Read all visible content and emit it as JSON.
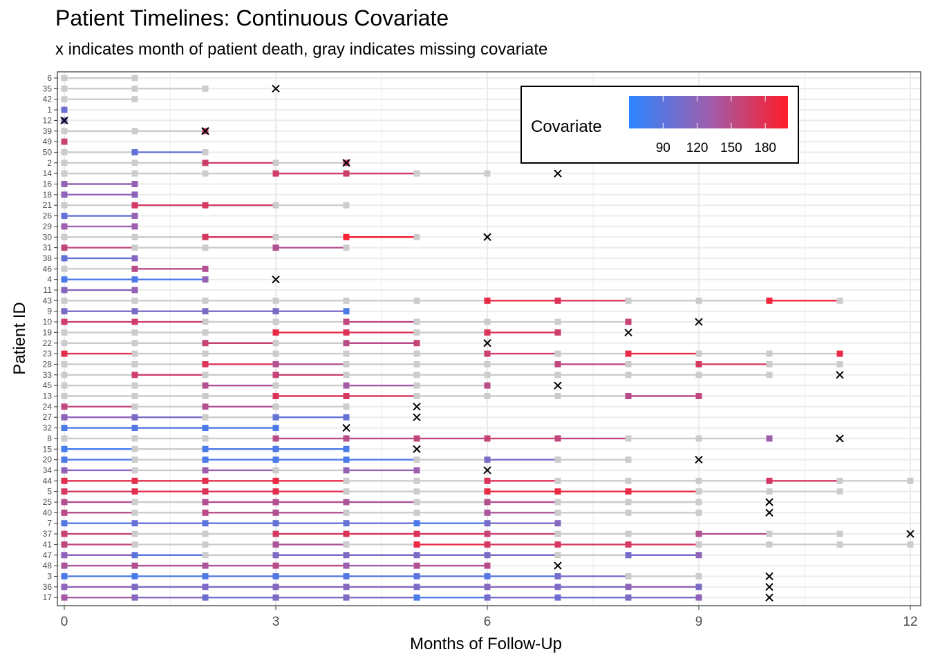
{
  "chart_data": {
    "type": "timeline",
    "title": "Patient Timelines: Continuous Covariate",
    "subtitle": "x indicates month of patient death, gray indicates missing covariate",
    "xlabel": "Months of Follow-Up",
    "ylabel": "Patient ID",
    "xlim": [
      0,
      12
    ],
    "xticks": [
      0,
      3,
      6,
      9,
      12
    ],
    "grid": true,
    "legend": {
      "title": "Covariate",
      "placement": "top-right",
      "range": [
        60,
        200
      ],
      "ticks": [
        90,
        120,
        150,
        180
      ],
      "colors": {
        "low": "#2b85ff",
        "mid": "#9d5fae",
        "high": "#ff1c28",
        "missing": "#cccccc"
      }
    },
    "patients": [
      {
        "id": "6",
        "values": [
          null,
          null
        ]
      },
      {
        "id": "35",
        "values": [
          null,
          null,
          null
        ],
        "death": 3
      },
      {
        "id": "42",
        "values": [
          null,
          null
        ]
      },
      {
        "id": "1",
        "values": [
          100
        ]
      },
      {
        "id": "12",
        "values": [
          110
        ],
        "death": 0
      },
      {
        "id": "39",
        "values": [
          null,
          null,
          160
        ],
        "death": 2
      },
      {
        "id": "49",
        "values": [
          160
        ]
      },
      {
        "id": "50",
        "values": [
          null,
          95,
          null
        ]
      },
      {
        "id": "2",
        "values": [
          null,
          null,
          165,
          null,
          160
        ],
        "death": 4
      },
      {
        "id": "14",
        "values": [
          null,
          null,
          null,
          165,
          165,
          null,
          null
        ],
        "death": 7
      },
      {
        "id": "16",
        "values": [
          125,
          125
        ]
      },
      {
        "id": "18",
        "values": [
          120,
          120
        ]
      },
      {
        "id": "21",
        "values": [
          null,
          170,
          170,
          null,
          null
        ]
      },
      {
        "id": "26",
        "values": [
          95,
          125
        ]
      },
      {
        "id": "29",
        "values": [
          130,
          130
        ]
      },
      {
        "id": "30",
        "values": [
          null,
          null,
          170,
          null,
          195,
          null
        ],
        "death": 6
      },
      {
        "id": "31",
        "values": [
          155,
          null,
          null,
          145,
          null
        ]
      },
      {
        "id": "38",
        "values": [
          95,
          115
        ]
      },
      {
        "id": "46",
        "values": [
          null,
          150,
          145
        ]
      },
      {
        "id": "4",
        "values": [
          80,
          80,
          125
        ],
        "death": 3
      },
      {
        "id": "11",
        "values": [
          115,
          125
        ]
      },
      {
        "id": "43",
        "values": [
          null,
          null,
          null,
          null,
          null,
          null,
          185,
          175,
          null,
          null,
          190,
          null
        ]
      },
      {
        "id": "9",
        "values": [
          110,
          110,
          110,
          110,
          80
        ]
      },
      {
        "id": "10",
        "values": [
          165,
          165,
          null,
          null,
          155,
          null,
          null,
          null,
          160
        ],
        "death": 9
      },
      {
        "id": "19",
        "values": [
          null,
          null,
          null,
          185,
          175,
          null,
          175,
          165
        ],
        "death": 8
      },
      {
        "id": "22",
        "values": [
          null,
          null,
          160,
          null,
          150,
          160
        ],
        "death": 6
      },
      {
        "id": "23",
        "values": [
          180,
          null,
          null,
          null,
          null,
          null,
          165,
          null,
          185,
          null,
          null,
          185
        ]
      },
      {
        "id": "28",
        "values": [
          null,
          null,
          175,
          145,
          null,
          null,
          null,
          155,
          null,
          170,
          null,
          null
        ]
      },
      {
        "id": "33",
        "values": [
          null,
          165,
          null,
          160,
          null,
          null,
          null,
          null,
          null,
          null,
          null
        ],
        "death": 11
      },
      {
        "id": "45",
        "values": [
          null,
          null,
          145,
          null,
          135,
          null,
          150
        ],
        "death": 7
      },
      {
        "id": "13",
        "values": [
          null,
          null,
          null,
          175,
          170,
          null,
          null,
          null,
          150,
          155
        ]
      },
      {
        "id": "24",
        "values": [
          155,
          null,
          145,
          null,
          null
        ],
        "death": 5
      },
      {
        "id": "27",
        "values": [
          120,
          110,
          null,
          95,
          95
        ],
        "death": 5
      },
      {
        "id": "32",
        "values": [
          80,
          85,
          80,
          80
        ],
        "death": 4
      },
      {
        "id": "8",
        "values": [
          null,
          null,
          null,
          150,
          150,
          155,
          160,
          155,
          null,
          null,
          130
        ],
        "death": 11
      },
      {
        "id": "15",
        "values": [
          75,
          null,
          80,
          80,
          80
        ],
        "death": 5
      },
      {
        "id": "20",
        "values": [
          80,
          null,
          80,
          80,
          80,
          null,
          110,
          null,
          null
        ],
        "death": 9
      },
      {
        "id": "34",
        "values": [
          120,
          null,
          130,
          null,
          125,
          130
        ],
        "death": 6
      },
      {
        "id": "44",
        "values": [
          180,
          180,
          180,
          185,
          null,
          null,
          175,
          null,
          null,
          null,
          170,
          null,
          null
        ]
      },
      {
        "id": "5",
        "values": [
          170,
          180,
          175,
          180,
          null,
          null,
          185,
          185,
          185,
          null,
          null,
          null
        ]
      },
      {
        "id": "25",
        "values": [
          145,
          null,
          145,
          145,
          140,
          null,
          145,
          null,
          null,
          null
        ],
        "death": 10
      },
      {
        "id": "40",
        "values": [
          150,
          null,
          150,
          145,
          null,
          null,
          140,
          null,
          null,
          null
        ],
        "death": 10
      },
      {
        "id": "7",
        "values": [
          85,
          95,
          90,
          95,
          95,
          80,
          105,
          115
        ]
      },
      {
        "id": "37",
        "values": [
          160,
          null,
          null,
          170,
          175,
          175,
          160,
          null,
          null,
          145,
          null,
          null
        ],
        "death": 12
      },
      {
        "id": "41",
        "values": [
          155,
          null,
          null,
          140,
          null,
          185,
          170,
          170,
          170,
          null,
          null,
          null,
          null
        ]
      },
      {
        "id": "47",
        "values": [
          120,
          90,
          null,
          110,
          110,
          110,
          110,
          null,
          105,
          120
        ]
      },
      {
        "id": "48",
        "values": [
          140,
          145,
          140,
          150,
          130,
          145,
          150
        ],
        "death": 7
      },
      {
        "id": "3",
        "values": [
          80,
          80,
          85,
          85,
          85,
          90,
          85,
          105,
          null,
          null
        ],
        "death": 10
      },
      {
        "id": "36",
        "values": [
          120,
          110,
          110,
          115,
          115,
          110,
          115,
          110,
          120,
          110
        ],
        "death": 10
      },
      {
        "id": "17",
        "values": [
          135,
          115,
          100,
          110,
          110,
          80,
          105,
          100,
          110,
          120
        ],
        "death": 10
      }
    ]
  }
}
